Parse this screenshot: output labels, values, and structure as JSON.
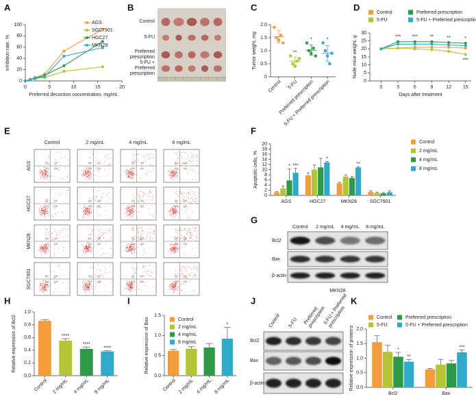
{
  "chart_data": [
    {
      "panel": "A",
      "type": "line",
      "ylabel": "Inhibition rate, %",
      "xlabel": "Preferred decoction concentration, mg/mL",
      "x": [
        0,
        1,
        2,
        4,
        8,
        16
      ],
      "xlim": [
        0,
        20
      ],
      "xticks": [
        0,
        5,
        10,
        15,
        20
      ],
      "ylim": [
        0,
        100
      ],
      "yticks": [
        0,
        20,
        40,
        60,
        80,
        100
      ],
      "legend": "upper right",
      "series": [
        {
          "name": "AGS",
          "color": "#f39c3c",
          "values": [
            0,
            3,
            6,
            12,
            53,
            92
          ]
        },
        {
          "name": "SGC7901",
          "color": "#b5c434",
          "values": [
            0,
            2,
            4,
            6,
            17,
            25
          ]
        },
        {
          "name": "HGC27",
          "color": "#2e9a48",
          "values": [
            0,
            2,
            5,
            10,
            27,
            70
          ]
        },
        {
          "name": "MKN28",
          "color": "#30aac8",
          "values": [
            0,
            2,
            4,
            8,
            44,
            59
          ]
        }
      ]
    },
    {
      "panel": "C",
      "type": "scatter-dot",
      "ylabel": "Tumor weight, mg",
      "categories": [
        "Control",
        "5-FU",
        "Preferred prescription",
        "5-FU + Preferred prescription"
      ],
      "colors": [
        "#f39c3c",
        "#b5c434",
        "#2e9a48",
        "#30aac8"
      ],
      "ylim": [
        0,
        2
      ],
      "yticks": [
        0,
        0.5,
        {
          "value": 1,
          "label": "1.0"
        },
        1.5,
        {
          "value": 2,
          "label": "2.0"
        }
      ],
      "points": [
        [
          1.9,
          1.5,
          1.4,
          1.6,
          1.3
        ],
        [
          0.8,
          0.5,
          0.4,
          0.6,
          0.7
        ],
        [
          1.3,
          1.0,
          0.9,
          1.1,
          0.8
        ],
        [
          1.3,
          1.0,
          0.8,
          0.5,
          0.9
        ]
      ],
      "means": [
        1.54,
        0.6,
        1.02,
        0.9
      ],
      "errors": [
        0.24,
        0.16,
        0.2,
        0.3
      ],
      "significance": [
        null,
        "**",
        "*",
        "*"
      ]
    },
    {
      "panel": "D",
      "type": "line",
      "ylabel": "Nude mice weight, g",
      "xlabel": "Days after treatment",
      "x": [
        0,
        3,
        6,
        9,
        12,
        15
      ],
      "xlim": [
        -2,
        16
      ],
      "xticks": [
        0,
        3,
        6,
        9,
        12,
        15
      ],
      "ylim": [
        0,
        30
      ],
      "yticks": [
        0,
        5,
        10,
        15,
        20,
        25,
        30
      ],
      "legend": "top",
      "series": [
        {
          "name": "Control",
          "color": "#f39c3c",
          "values": [
            20,
            20.5,
            21,
            21,
            21,
            20.5
          ]
        },
        {
          "name": "5-FU",
          "color": "#b5c434",
          "values": [
            20,
            20.5,
            20,
            19.5,
            18.5,
            16.5
          ]
        },
        {
          "name": "Preferred prescription",
          "color": "#2e9a48",
          "values": [
            20,
            24.5,
            24.5,
            24.5,
            24,
            23.5
          ]
        },
        {
          "name": "5-FU + Preferred prescription",
          "color": "#30aac8",
          "values": [
            20,
            23,
            23,
            23,
            22.5,
            22
          ]
        }
      ],
      "annotations": [
        {
          "x": 3,
          "text": "***"
        },
        {
          "x": 6,
          "text": "***"
        },
        {
          "x": 9,
          "text": "**"
        },
        {
          "x": 12,
          "text": "**"
        },
        {
          "x": 15,
          "text": "*"
        },
        {
          "x": 15,
          "text": "***",
          "series": "5-FU"
        }
      ]
    },
    {
      "panel": "F",
      "type": "grouped-bar",
      "ylabel": "Apoptotic cells, %",
      "categories": [
        "AGS",
        "HGC27",
        "MKN28",
        "SGC7901"
      ],
      "ylim": [
        0,
        20
      ],
      "yticks": [
        0,
        2,
        4,
        6,
        8,
        10,
        12,
        14,
        16,
        18,
        20
      ],
      "legend": "right",
      "series": [
        {
          "name": "Control",
          "color": "#f39c3c",
          "values": [
            1.2,
            7.8,
            4.7,
            1.3
          ],
          "errors": [
            0.3,
            1,
            0.4,
            0.5
          ],
          "significance": [
            null,
            null,
            null,
            null
          ]
        },
        {
          "name": "2 mg/mL",
          "color": "#b5c434",
          "values": [
            2.7,
            10,
            7.3,
            1.0
          ],
          "errors": [
            1,
            1.8,
            0.7,
            0.3
          ],
          "significance": [
            null,
            null,
            null,
            null
          ]
        },
        {
          "name": "4 mg/mL",
          "color": "#2e9a48",
          "values": [
            5.8,
            10.9,
            6.8,
            0.8
          ],
          "errors": [
            4.5,
            3.5,
            0.6,
            0.3
          ],
          "significance": [
            "*",
            null,
            null,
            null
          ]
        },
        {
          "name": "8 mg/mL",
          "color": "#30aac8",
          "values": [
            8.8,
            12.8,
            10.8,
            1.2
          ],
          "errors": [
            1.7,
            0.4,
            0.3,
            0.5
          ],
          "significance": [
            "***",
            "*",
            "**",
            null
          ]
        }
      ]
    },
    {
      "panel": "H",
      "type": "bar",
      "ylabel": "Relative expression of Bcl2",
      "categories": [
        "Control",
        "2 mg/mL",
        "4 mg/mL",
        "8 mg/mL"
      ],
      "colors": [
        "#f39c3c",
        "#b5c434",
        "#2e9a48",
        "#30aac8"
      ],
      "values": [
        0.86,
        0.55,
        0.42,
        0.38
      ],
      "errors": [
        0.02,
        0.03,
        0.03,
        0.01
      ],
      "significance": [
        null,
        "****",
        "****",
        "****"
      ],
      "ylim": [
        0,
        1
      ],
      "yticks": [
        {
          "value": 0,
          "label": "0.0"
        },
        0.2,
        0.4,
        0.6,
        0.8,
        {
          "value": 1,
          "label": "1.0"
        }
      ]
    },
    {
      "panel": "I",
      "type": "bar",
      "ylabel": "Relative expression of Bax",
      "categories": [
        "Control",
        "2 mg/mL",
        "4 mg/mL",
        "8 mg/mL"
      ],
      "colors": [
        "#f39c3c",
        "#b5c434",
        "#2e9a48",
        "#30aac8"
      ],
      "values": [
        0.62,
        0.67,
        0.7,
        0.92
      ],
      "errors": [
        0.03,
        0.05,
        0.1,
        0.28
      ],
      "significance": [
        null,
        null,
        null,
        "*"
      ],
      "ylim": [
        0,
        1.5
      ],
      "yticks": [
        {
          "value": 0,
          "label": "0.0"
        },
        0.5,
        {
          "value": 1,
          "label": "1.0"
        },
        1.5
      ],
      "legend": "upper left"
    },
    {
      "panel": "K",
      "type": "grouped-bar",
      "ylabel": "Relative expression of proteins",
      "categories": [
        "Bcl2",
        "Bax"
      ],
      "ylim": [
        0,
        2
      ],
      "yticks": [
        {
          "value": 0,
          "label": "0.0"
        },
        0.5,
        {
          "value": 1,
          "label": "1.0"
        },
        1.5,
        {
          "value": 2,
          "label": "2.0"
        }
      ],
      "legend": "top",
      "series": [
        {
          "name": "Control",
          "color": "#f39c3c",
          "values": [
            1.55,
            0.62
          ],
          "errors": [
            0.22,
            0.03
          ],
          "significance": [
            null,
            null
          ]
        },
        {
          "name": "5-FU",
          "color": "#b5c434",
          "values": [
            1.22,
            0.78
          ],
          "errors": [
            0.22,
            0.18
          ],
          "significance": [
            null,
            null
          ]
        },
        {
          "name": "Preferred prescription",
          "color": "#2e9a48",
          "values": [
            1.05,
            0.82
          ],
          "errors": [
            0.15,
            0.1
          ],
          "significance": [
            "*",
            null
          ]
        },
        {
          "name": "5-FU + Preferred prescription",
          "color": "#30aac8",
          "values": [
            0.88,
            1.2
          ],
          "errors": [
            0.08,
            0.08
          ],
          "significance": [
            "**",
            "***"
          ]
        }
      ]
    }
  ],
  "photo": {
    "panel": "B",
    "rows": [
      "Control",
      "5-FU",
      "Preferred prescription",
      "5-FU + Preferred prescription"
    ]
  },
  "flow": {
    "panel": "E",
    "columns": [
      "Control",
      "2 mg/mL",
      "4 mg/mL",
      "8 mg/mL"
    ],
    "rows": [
      "AGS",
      "HGC27",
      "MKN28",
      "SGC7901"
    ],
    "quadrants": [
      "Q1",
      "Q2",
      "Q3",
      "Q4"
    ]
  },
  "blot_g": {
    "panel": "G",
    "columns": [
      "Control",
      "2 mg/mL",
      "4 mg/mL",
      "8 mg/mL"
    ],
    "rows": [
      "Bcl2",
      "Bax",
      "β-actin"
    ],
    "caption": "MKN28"
  },
  "blot_j": {
    "panel": "J",
    "columns": [
      "Control",
      "5-FU",
      "Preferred prescription",
      "5-FU + Preferred prescription"
    ],
    "rows": [
      "Bcl2",
      "Bax",
      "β-actin"
    ]
  }
}
